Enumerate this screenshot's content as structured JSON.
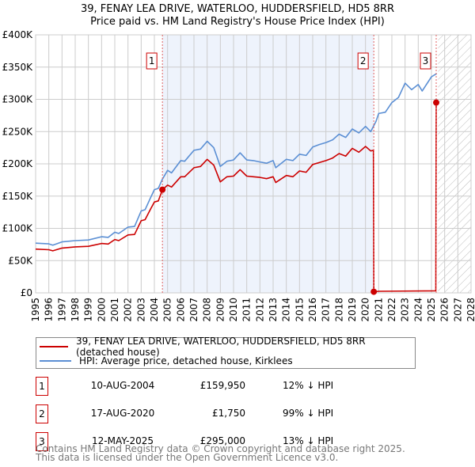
{
  "chart_data": {
    "type": "line",
    "title": "39, FENAY LEA DRIVE, WATERLOO, HUDDERSFIELD, HD5 8RR",
    "subtitle": "Price paid vs. HM Land Registry's House Price Index (HPI)",
    "xlim": [
      1995,
      2028
    ],
    "ylim": [
      0,
      400000
    ],
    "x_ticks": [
      "1995",
      "1996",
      "1997",
      "1998",
      "1999",
      "2000",
      "2001",
      "2002",
      "2003",
      "2004",
      "2005",
      "2006",
      "2007",
      "2008",
      "2009",
      "2010",
      "2011",
      "2012",
      "2013",
      "2014",
      "2015",
      "2016",
      "2017",
      "2018",
      "2019",
      "2020",
      "2021",
      "2022",
      "2023",
      "2024",
      "2025",
      "2026",
      "2027",
      "2028"
    ],
    "y_ticks": [
      {
        "v": 0,
        "label": "£0"
      },
      {
        "v": 50000,
        "label": "£50K"
      },
      {
        "v": 100000,
        "label": "£100K"
      },
      {
        "v": 150000,
        "label": "£150K"
      },
      {
        "v": 200000,
        "label": "£200K"
      },
      {
        "v": 250000,
        "label": "£250K"
      },
      {
        "v": 300000,
        "label": "£300K"
      },
      {
        "v": 350000,
        "label": "£350K"
      },
      {
        "v": 400000,
        "label": "£400K"
      }
    ],
    "grid": true,
    "shaded_range": [
      2004.61,
      2020.63
    ],
    "forecast_hatch_from": 2025.5,
    "series": [
      {
        "name": "39, FENAY LEA DRIVE, WATERLOO, HUDDERSFIELD, HD5 8RR (detached house)",
        "color": "#cc0000",
        "x": [
          1995,
          1996,
          1996.3,
          1997,
          1998,
          1999,
          2000,
          2000.5,
          2001,
          2001.3,
          2002,
          2002.5,
          2003,
          2003.3,
          2003.7,
          2004,
          2004.3,
          2004.61,
          2005,
          2005.3,
          2006,
          2006.3,
          2007,
          2007.5,
          2008,
          2008.5,
          2009,
          2009.5,
          2010,
          2010.5,
          2011,
          2011.5,
          2012,
          2012.5,
          2013,
          2013.2,
          2014,
          2014.5,
          2015,
          2015.5,
          2016,
          2016.5,
          2017,
          2017.5,
          2018,
          2018.5,
          2019,
          2019.5,
          2020,
          2020.4,
          2020.6,
          2020.63,
          2021,
          2025.33,
          2025.36
        ],
        "y": [
          67800,
          66900,
          65100,
          69500,
          71300,
          72200,
          76600,
          75700,
          82700,
          81000,
          89800,
          90600,
          111800,
          113500,
          129400,
          140800,
          142600,
          159950,
          167000,
          164000,
          180000,
          180000,
          194000,
          196000,
          207000,
          198000,
          172000,
          180000,
          181000,
          191000,
          181000,
          180000,
          179000,
          177000,
          180000,
          171000,
          182000,
          180000,
          189000,
          187000,
          199000,
          202000,
          205000,
          209000,
          216000,
          212000,
          224000,
          218000,
          227000,
          220000,
          221000,
          1750,
          2500,
          3200,
          295000
        ]
      },
      {
        "name": "HPI: Average price, detached house, Kirklees",
        "color": "#5b8fd4",
        "x": [
          1995,
          1996,
          1996.3,
          1997,
          1998,
          1999,
          2000,
          2000.5,
          2001,
          2001.3,
          2002,
          2002.5,
          2003,
          2003.3,
          2003.7,
          2004,
          2004.3,
          2004.6,
          2005,
          2005.3,
          2006,
          2006.3,
          2007,
          2007.5,
          2008,
          2008.5,
          2009,
          2009.5,
          2010,
          2010.5,
          2011,
          2011.5,
          2012,
          2012.5,
          2013,
          2013.2,
          2014,
          2014.5,
          2015,
          2015.5,
          2016,
          2016.5,
          2017,
          2017.5,
          2018,
          2018.5,
          2019,
          2019.5,
          2020,
          2020.4,
          2020.8,
          2021,
          2021.5,
          2022,
          2022.5,
          2023,
          2023.5,
          2024,
          2024.3,
          2025,
          2025.4
        ],
        "y": [
          77000,
          76000,
          74000,
          79000,
          81000,
          82000,
          87000,
          86000,
          94000,
          92000,
          102000,
          103000,
          127000,
          129000,
          147000,
          160000,
          162000,
          176000,
          190000,
          186000,
          205000,
          204000,
          221000,
          223000,
          235000,
          225000,
          196000,
          204000,
          206000,
          217000,
          206000,
          205000,
          203000,
          201000,
          205000,
          194000,
          207000,
          205000,
          215000,
          213000,
          226000,
          230000,
          233000,
          237000,
          246000,
          241000,
          254000,
          248000,
          258000,
          250000,
          266000,
          278000,
          280000,
          295000,
          303000,
          325000,
          315000,
          323000,
          313000,
          335000,
          340000
        ]
      }
    ],
    "sales": [
      {
        "n": "1",
        "x": 2004.61,
        "y": 159950
      },
      {
        "n": "2",
        "x": 2020.63,
        "y": 1750
      },
      {
        "n": "3",
        "x": 2025.36,
        "y": 295000
      }
    ]
  },
  "legend": {
    "property": "39, FENAY LEA DRIVE, WATERLOO, HUDDERSFIELD, HD5 8RR (detached house)",
    "hpi": "HPI: Average price, detached house, Kirklees"
  },
  "transactions": [
    {
      "n": "1",
      "date": "10-AUG-2004",
      "price": "£159,950",
      "hpi": "12% ↓ HPI"
    },
    {
      "n": "2",
      "date": "17-AUG-2020",
      "price": "£1,750",
      "hpi": "99% ↓ HPI"
    },
    {
      "n": "3",
      "date": "12-MAY-2025",
      "price": "£295,000",
      "hpi": "13% ↓ HPI"
    }
  ],
  "footer": {
    "line1": "Contains HM Land Registry data © Crown copyright and database right 2025.",
    "line2": "This data is licensed under the Open Government Licence v3.0."
  }
}
